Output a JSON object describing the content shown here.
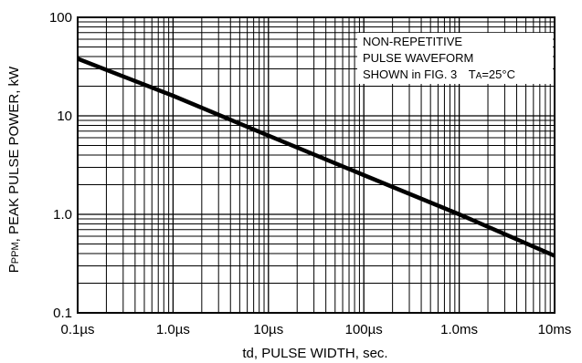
{
  "chart_data": {
    "type": "line",
    "title": "",
    "xscale": "log",
    "yscale": "log",
    "xlim_seconds": [
      1e-07,
      0.01
    ],
    "ylim": [
      0.1,
      100
    ],
    "grid": true,
    "xlabel": "td, PULSE WIDTH, sec.",
    "ylabel": {
      "main": "P",
      "sub": "PPM",
      "rest": ", PEAK PULSE POWER, kW"
    },
    "x_ticks": [
      {
        "value": 1e-07,
        "label": "0.1µs"
      },
      {
        "value": 1e-06,
        "label": "1.0µs"
      },
      {
        "value": 1e-05,
        "label": "10µs"
      },
      {
        "value": 0.0001,
        "label": "100µs"
      },
      {
        "value": 0.001,
        "label": "1.0ms"
      },
      {
        "value": 0.01,
        "label": "10ms"
      }
    ],
    "y_ticks": [
      {
        "value": 0.1,
        "label": "0.1"
      },
      {
        "value": 1,
        "label": "1.0"
      },
      {
        "value": 10,
        "label": "10"
      },
      {
        "value": 100,
        "label": "100"
      }
    ],
    "series": [
      {
        "points": [
          [
            1e-07,
            38
          ],
          [
            1e-06,
            16
          ],
          [
            1e-05,
            6.3
          ],
          [
            0.0001,
            2.5
          ],
          [
            0.001,
            1.0
          ],
          [
            0.01,
            0.38
          ]
        ]
      }
    ],
    "annotation": {
      "lines": [
        "NON-REPETITIVE",
        "PULSE WAVEFORM",
        "SHOWN in FIG. 3"
      ],
      "temp_main": "T",
      "temp_sub": "A",
      "temp_rest": "=25°C"
    }
  }
}
